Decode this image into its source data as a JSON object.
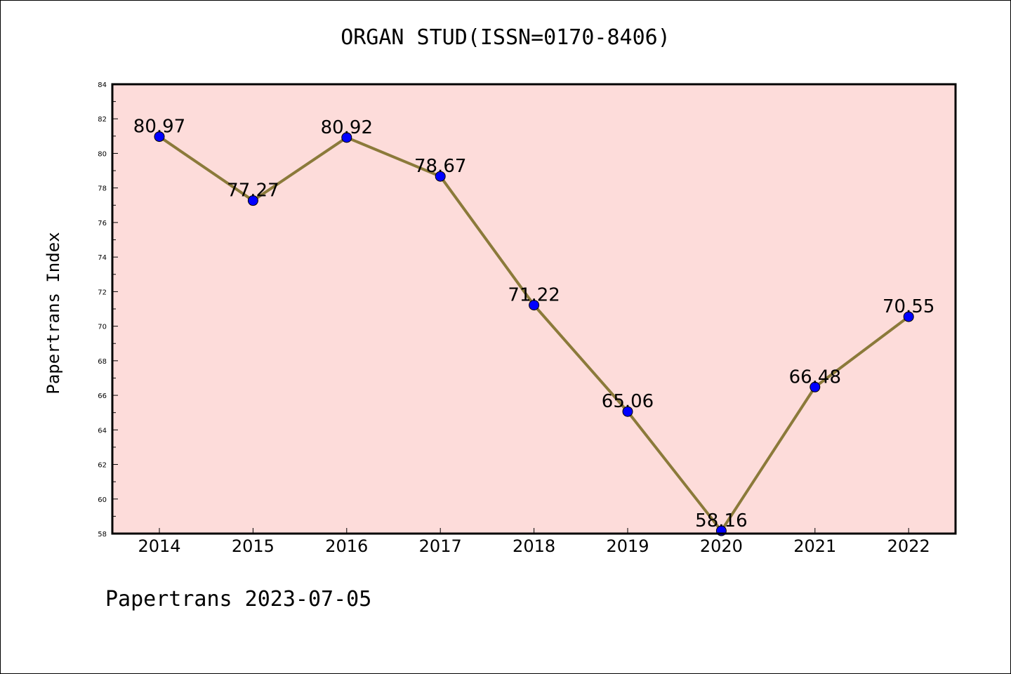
{
  "footer_text": "Papertrans 2023-07-05",
  "chart_data": {
    "type": "line",
    "title": "ORGAN STUD(ISSN=0170-8406)",
    "xlabel": "",
    "ylabel": "Papertrans Index",
    "ylim": [
      58,
      84
    ],
    "yticks": [
      58,
      60,
      62,
      64,
      66,
      68,
      70,
      72,
      74,
      76,
      78,
      80,
      82,
      84
    ],
    "categories": [
      "2014",
      "2015",
      "2016",
      "2017",
      "2018",
      "2019",
      "2020",
      "2021",
      "2022"
    ],
    "series": [
      {
        "values": [
          80.97,
          77.27,
          80.92,
          78.67,
          71.22,
          65.06,
          58.16,
          66.48,
          70.55
        ],
        "labels": [
          "80.97",
          "77.27",
          "80.92",
          "78.67",
          "71.22",
          "65.06",
          "58.16",
          "66.48",
          "70.55"
        ],
        "line_color": "#8b7a3a",
        "marker_color": "#0000ff"
      }
    ],
    "plot_background": "#fddcda",
    "grid": false
  }
}
